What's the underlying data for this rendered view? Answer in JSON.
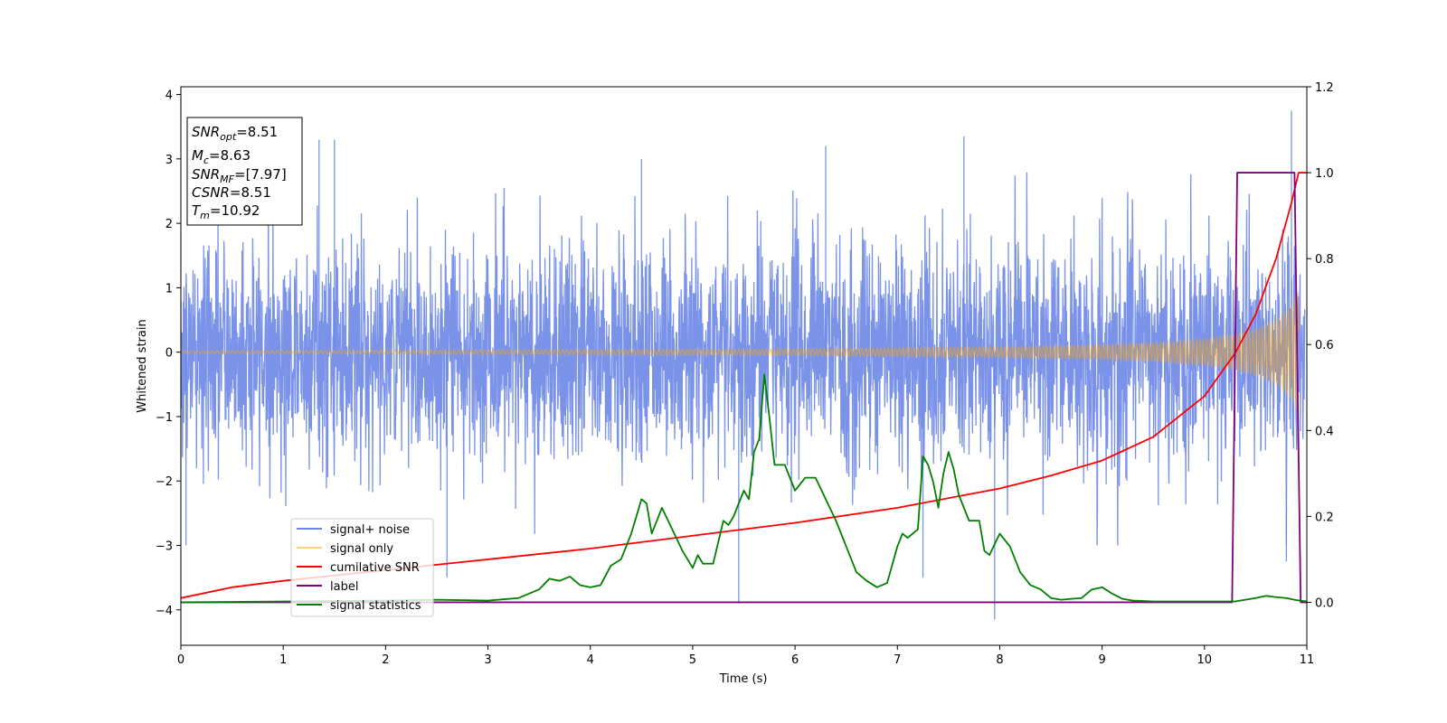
{
  "chart_data": {
    "type": "line",
    "xlabel": "Time (s)",
    "ylabel": "Whitened strain",
    "xlim": [
      0,
      11
    ],
    "ylim": [
      -4.55,
      4.12
    ],
    "y2lim": [
      -0.1,
      1.2
    ],
    "x_ticks": [
      "0",
      "1",
      "2",
      "3",
      "4",
      "5",
      "6",
      "7",
      "8",
      "9",
      "10",
      "11"
    ],
    "y_ticks": [
      "4",
      "3",
      "2",
      "1",
      "0",
      "−1",
      "−2",
      "−3",
      "−4"
    ],
    "y2_ticks": [
      "0.0",
      "0.2",
      "0.4",
      "0.6",
      "0.8",
      "1.0",
      "1.2"
    ],
    "grid": false,
    "legend_placement": "lower-left",
    "annotation": {
      "snr_opt_base": "SNR",
      "snr_opt_sub": "opt",
      "snr_opt_value": "=8.51",
      "mc_base": "M",
      "mc_sub": "c",
      "mc_value": "=8.63",
      "snr_mf_base": "SNR",
      "snr_mf_sub": "MF",
      "snr_mf_value": "=[7.97]",
      "csnr_base": "CSNR",
      "csnr_value": "=8.51",
      "tm_base": "T",
      "tm_sub": "m",
      "tm_value": "=10.92"
    },
    "series": [
      {
        "name": "signal+ noise",
        "color": "#6b87e6",
        "axis": "left",
        "description_values": {
          "noise_std": 0.85,
          "typical_peak_abs": 3.0,
          "annotated_extremes": [
            [
              0.05,
              -3.0
            ],
            [
              1.35,
              3.3
            ],
            [
              1.5,
              3.3
            ],
            [
              2.6,
              -3.5
            ],
            [
              4.5,
              3.0
            ],
            [
              5.45,
              -3.9
            ],
            [
              6.3,
              3.2
            ],
            [
              7.25,
              -3.5
            ],
            [
              7.65,
              3.35
            ],
            [
              7.95,
              -4.15
            ],
            [
              10.8,
              -3.25
            ],
            [
              10.85,
              3.75
            ]
          ]
        }
      },
      {
        "name": "signal only",
        "color": "#ffa500",
        "axis": "left",
        "envelope": {
          "x": [
            0,
            2,
            4,
            6,
            8,
            9,
            9.5,
            10,
            10.3,
            10.5,
            10.7,
            10.85,
            10.92
          ],
          "amp": [
            0.02,
            0.03,
            0.04,
            0.05,
            0.08,
            0.11,
            0.14,
            0.2,
            0.28,
            0.36,
            0.5,
            0.72,
            0.95
          ]
        }
      },
      {
        "name": "cumilative SNR",
        "color": "#ff0000",
        "axis": "right",
        "x": [
          0,
          0.5,
          1,
          2,
          3,
          4,
          5,
          6,
          7,
          8,
          8.5,
          9,
          9.5,
          10,
          10.3,
          10.5,
          10.7,
          10.85,
          10.92,
          11
        ],
        "y": [
          0.01,
          0.035,
          0.05,
          0.075,
          0.1,
          0.125,
          0.155,
          0.185,
          0.22,
          0.265,
          0.295,
          0.33,
          0.385,
          0.48,
          0.58,
          0.67,
          0.8,
          0.93,
          1.0,
          1.0
        ]
      },
      {
        "name": "label",
        "color": "#800080",
        "axis": "right",
        "x": [
          0,
          10.27,
          10.32,
          10.88,
          10.94,
          11
        ],
        "y": [
          0.0,
          0.0,
          1.0,
          1.0,
          0.0,
          0.0
        ]
      },
      {
        "name": "signal statistics",
        "color": "#008000",
        "axis": "right",
        "x": [
          0,
          1,
          2,
          2.5,
          3,
          3.3,
          3.5,
          3.6,
          3.7,
          3.8,
          3.9,
          4.0,
          4.1,
          4.2,
          4.3,
          4.4,
          4.5,
          4.55,
          4.6,
          4.7,
          4.8,
          4.9,
          5.0,
          5.05,
          5.1,
          5.2,
          5.3,
          5.35,
          5.4,
          5.5,
          5.55,
          5.6,
          5.65,
          5.7,
          5.75,
          5.8,
          5.9,
          6.0,
          6.1,
          6.2,
          6.3,
          6.4,
          6.5,
          6.6,
          6.7,
          6.8,
          6.9,
          7.0,
          7.05,
          7.1,
          7.2,
          7.25,
          7.3,
          7.35,
          7.4,
          7.45,
          7.5,
          7.55,
          7.6,
          7.7,
          7.8,
          7.85,
          7.9,
          8.0,
          8.1,
          8.2,
          8.3,
          8.4,
          8.5,
          8.6,
          8.7,
          8.8,
          8.9,
          9.0,
          9.1,
          9.2,
          9.3,
          9.5,
          10.0,
          10.3,
          10.5,
          10.6,
          10.7,
          10.8,
          10.9,
          11.0
        ],
        "y": [
          0.0,
          0.002,
          0.004,
          0.006,
          0.004,
          0.01,
          0.03,
          0.055,
          0.05,
          0.06,
          0.04,
          0.035,
          0.04,
          0.085,
          0.1,
          0.16,
          0.24,
          0.23,
          0.16,
          0.22,
          0.17,
          0.12,
          0.08,
          0.11,
          0.09,
          0.09,
          0.19,
          0.18,
          0.2,
          0.26,
          0.24,
          0.35,
          0.38,
          0.53,
          0.43,
          0.32,
          0.32,
          0.26,
          0.29,
          0.29,
          0.24,
          0.19,
          0.13,
          0.07,
          0.05,
          0.035,
          0.045,
          0.13,
          0.16,
          0.15,
          0.17,
          0.34,
          0.32,
          0.28,
          0.22,
          0.3,
          0.35,
          0.31,
          0.25,
          0.19,
          0.19,
          0.12,
          0.11,
          0.16,
          0.13,
          0.07,
          0.04,
          0.03,
          0.01,
          0.006,
          0.008,
          0.01,
          0.03,
          0.035,
          0.02,
          0.008,
          0.004,
          0.002,
          0.002,
          0.002,
          0.01,
          0.015,
          0.012,
          0.01,
          0.005,
          0.002
        ]
      }
    ]
  }
}
